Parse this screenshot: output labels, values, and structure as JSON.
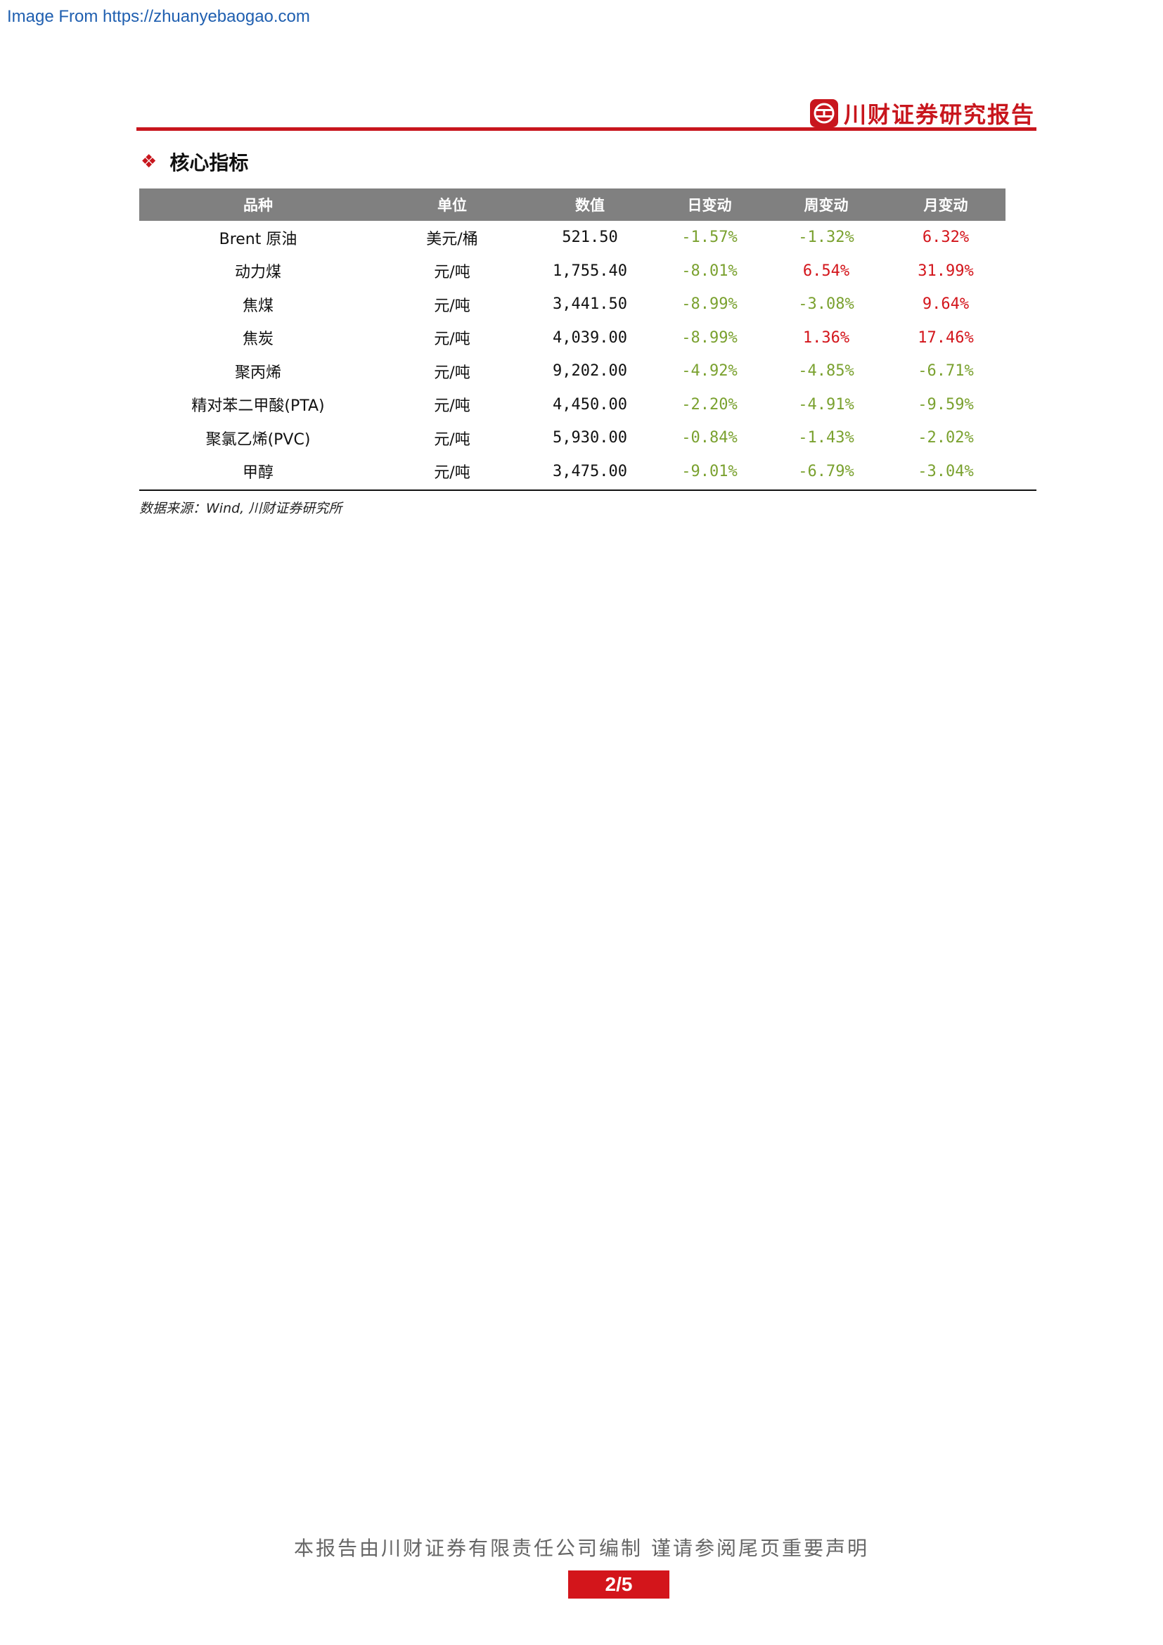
{
  "watermark": "Image From https://zhuanyebaogao.com",
  "header": {
    "brand": "川财证券研究报告",
    "logo_icon": "chuancai-logo-icon"
  },
  "section": {
    "title": "核心指标",
    "bullet_icon": "diamond-bullet-icon"
  },
  "table": {
    "columns": [
      "品种",
      "单位",
      "数值",
      "日变动",
      "周变动",
      "月变动"
    ],
    "rows": [
      [
        "Brent 原油",
        "美元/桶",
        "521.50",
        "-1.57%",
        "-1.32%",
        "6.32%"
      ],
      [
        "动力煤",
        "元/吨",
        "1,755.40",
        "-8.01%",
        "6.54%",
        "31.99%"
      ],
      [
        "焦煤",
        "元/吨",
        "3,441.50",
        "-8.99%",
        "-3.08%",
        "9.64%"
      ],
      [
        "焦炭",
        "元/吨",
        "4,039.00",
        "-8.99%",
        "1.36%",
        "17.46%"
      ],
      [
        "聚丙烯",
        "元/吨",
        "9,202.00",
        "-4.92%",
        "-4.85%",
        "-6.71%"
      ],
      [
        "精对苯二甲酸(PTA)",
        "元/吨",
        "4,450.00",
        "-2.20%",
        "-4.91%",
        "-9.59%"
      ],
      [
        "聚氯乙烯(PVC)",
        "元/吨",
        "5,930.00",
        "-0.84%",
        "-1.43%",
        "-2.02%"
      ],
      [
        "甲醇",
        "元/吨",
        "3,475.00",
        "-9.01%",
        "-6.79%",
        "-3.04%"
      ]
    ],
    "source": "数据来源：Wind, 川财证券研究所"
  },
  "footer": {
    "note": "本报告由川财证券有限责任公司编制 谨请参阅尾页重要声明",
    "page": "2/5"
  },
  "colors": {
    "brand_red": "#c8161d",
    "negative": "#7aa12f",
    "positive": "#d3151b",
    "header_gray": "#808080"
  }
}
